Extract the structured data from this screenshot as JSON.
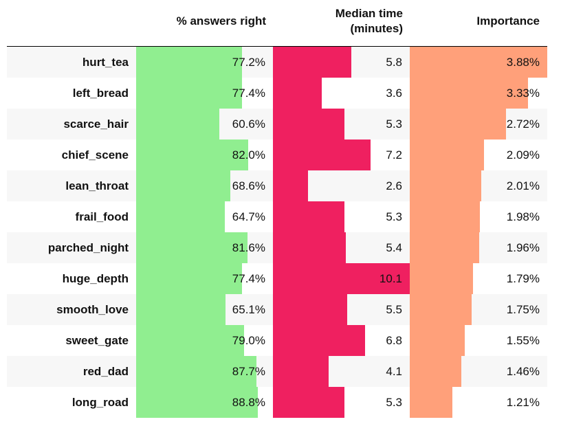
{
  "headers": {
    "pct": "% answers right",
    "time_line1": "Median time",
    "time_line2": "(minutes)",
    "importance": "Importance"
  },
  "colors": {
    "pct": "#90ee90",
    "time": "#ef2060",
    "importance": "#ffa07a"
  },
  "chart_data": {
    "type": "table",
    "columns": [
      "% answers right",
      "Median time (minutes)",
      "Importance"
    ],
    "scales": {
      "pct_max": 100,
      "time_max": 10.1,
      "importance_max": 3.88
    },
    "rows": [
      {
        "label": "hurt_tea",
        "pct": 77.2,
        "pct_text": "77.2%",
        "time": 5.8,
        "time_text": "5.8",
        "importance": 3.88,
        "importance_text": "3.88%"
      },
      {
        "label": "left_bread",
        "pct": 77.4,
        "pct_text": "77.4%",
        "time": 3.6,
        "time_text": "3.6",
        "importance": 3.33,
        "importance_text": "3.33%"
      },
      {
        "label": "scarce_hair",
        "pct": 60.6,
        "pct_text": "60.6%",
        "time": 5.3,
        "time_text": "5.3",
        "importance": 2.72,
        "importance_text": "2.72%"
      },
      {
        "label": "chief_scene",
        "pct": 82.0,
        "pct_text": "82.0%",
        "time": 7.2,
        "time_text": "7.2",
        "importance": 2.09,
        "importance_text": "2.09%"
      },
      {
        "label": "lean_throat",
        "pct": 68.6,
        "pct_text": "68.6%",
        "time": 2.6,
        "time_text": "2.6",
        "importance": 2.01,
        "importance_text": "2.01%"
      },
      {
        "label": "frail_food",
        "pct": 64.7,
        "pct_text": "64.7%",
        "time": 5.3,
        "time_text": "5.3",
        "importance": 1.98,
        "importance_text": "1.98%"
      },
      {
        "label": "parched_night",
        "pct": 81.6,
        "pct_text": "81.6%",
        "time": 5.4,
        "time_text": "5.4",
        "importance": 1.96,
        "importance_text": "1.96%"
      },
      {
        "label": "huge_depth",
        "pct": 77.4,
        "pct_text": "77.4%",
        "time": 10.1,
        "time_text": "10.1",
        "importance": 1.79,
        "importance_text": "1.79%"
      },
      {
        "label": "smooth_love",
        "pct": 65.1,
        "pct_text": "65.1%",
        "time": 5.5,
        "time_text": "5.5",
        "importance": 1.75,
        "importance_text": "1.75%"
      },
      {
        "label": "sweet_gate",
        "pct": 79.0,
        "pct_text": "79.0%",
        "time": 6.8,
        "time_text": "6.8",
        "importance": 1.55,
        "importance_text": "1.55%"
      },
      {
        "label": "red_dad",
        "pct": 87.7,
        "pct_text": "87.7%",
        "time": 4.1,
        "time_text": "4.1",
        "importance": 1.46,
        "importance_text": "1.46%"
      },
      {
        "label": "long_road",
        "pct": 88.8,
        "pct_text": "88.8%",
        "time": 5.3,
        "time_text": "5.3",
        "importance": 1.21,
        "importance_text": "1.21%"
      }
    ]
  }
}
